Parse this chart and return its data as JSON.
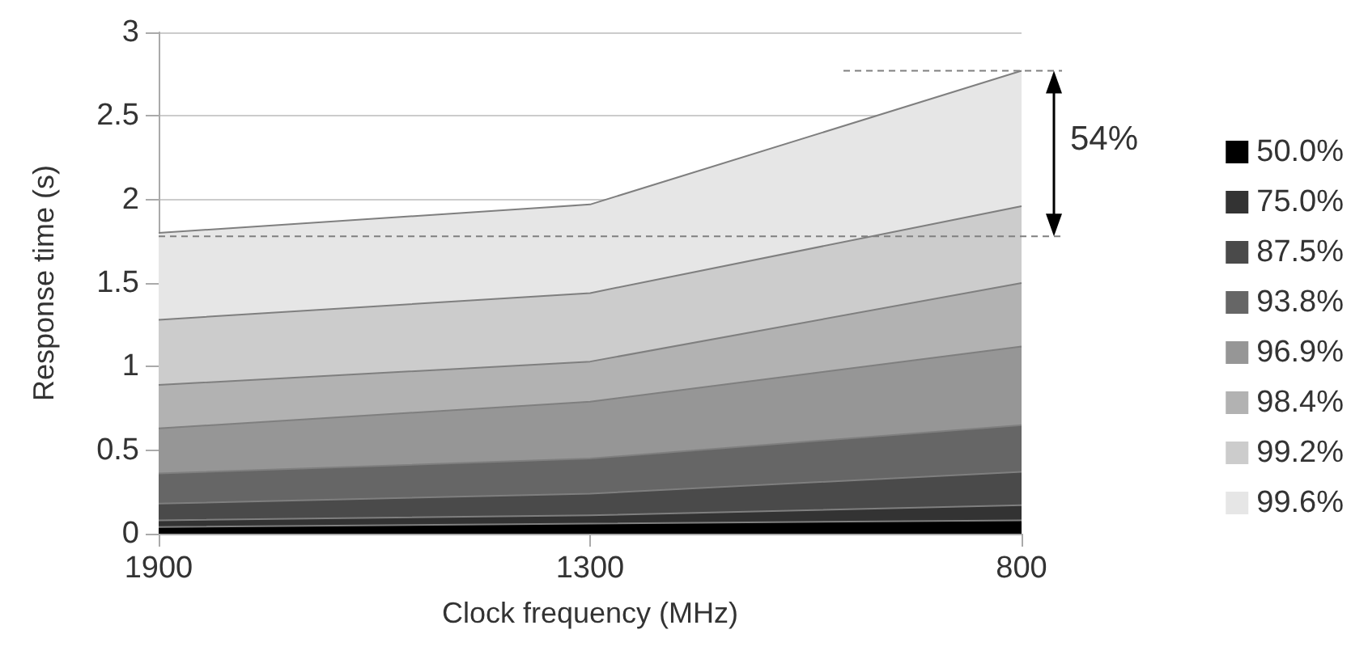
{
  "chart_data": {
    "type": "area",
    "xlabel": "Clock frequency (MHz)",
    "ylabel": "Response time (s)",
    "categories": [
      "1900",
      "1300",
      "800"
    ],
    "series": [
      {
        "name": "50.0%",
        "color": "#000000",
        "values": [
          0.04,
          0.06,
          0.08
        ]
      },
      {
        "name": "75.0%",
        "color": "#333333",
        "values": [
          0.08,
          0.11,
          0.17
        ]
      },
      {
        "name": "87.5%",
        "color": "#4a4a4a",
        "values": [
          0.18,
          0.24,
          0.37
        ]
      },
      {
        "name": "93.8%",
        "color": "#666666",
        "values": [
          0.36,
          0.45,
          0.65
        ]
      },
      {
        "name": "96.9%",
        "color": "#969696",
        "values": [
          0.63,
          0.79,
          1.12
        ]
      },
      {
        "name": "98.4%",
        "color": "#b2b2b2",
        "values": [
          0.89,
          1.03,
          1.5
        ]
      },
      {
        "name": "99.2%",
        "color": "#cccccc",
        "values": [
          1.28,
          1.44,
          1.96
        ]
      },
      {
        "name": "99.6%",
        "color": "#e6e6e6",
        "values": [
          1.8,
          1.97,
          2.77
        ]
      }
    ],
    "ylim": [
      0,
      3
    ],
    "yticks": [
      0,
      0.5,
      1,
      1.5,
      2,
      2.5,
      3
    ],
    "grid": "y",
    "legend": "right",
    "ref_lines": [
      {
        "axis": "y",
        "value": 2.77,
        "color": "#808080",
        "line_style": "dashed"
      },
      {
        "axis": "y",
        "value": 1.78,
        "color": "#808080",
        "line_style": "dashed"
      }
    ],
    "annotations": [
      "54%"
    ]
  }
}
